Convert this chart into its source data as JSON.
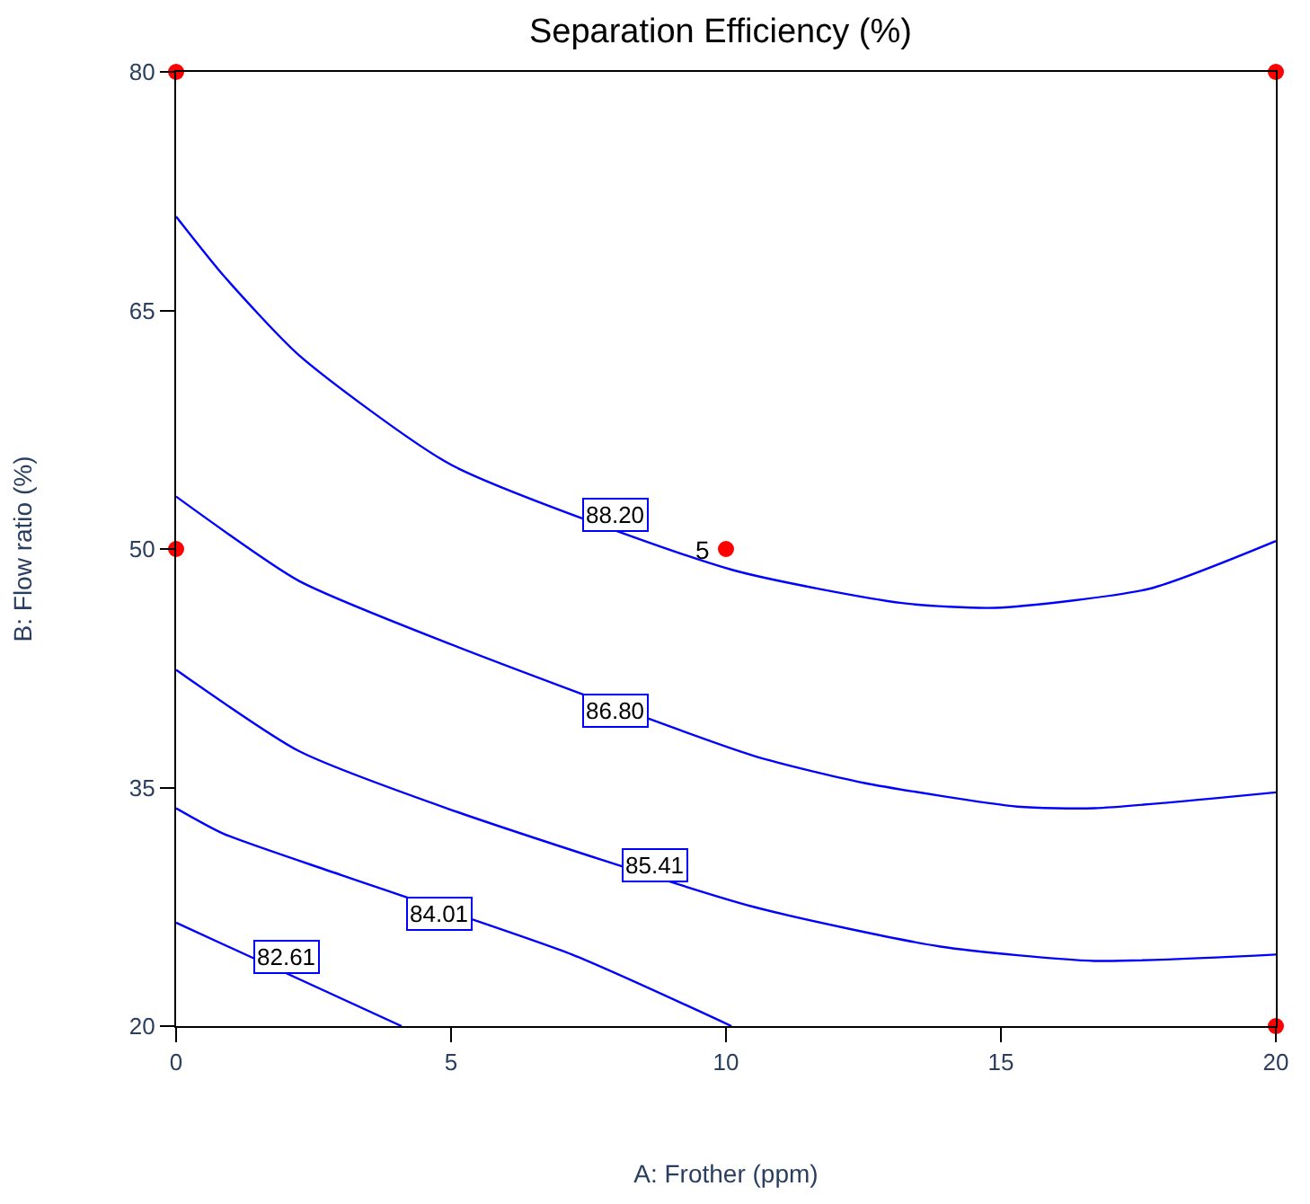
{
  "chart_data": {
    "type": "line",
    "title": "Separation Efficiency (%)",
    "xlabel": "A: Frother (ppm)",
    "ylabel": "B: Flow ratio (%)",
    "xlim": [
      0,
      20
    ],
    "xticks": [
      0,
      5,
      10,
      15,
      20
    ],
    "ylim": [
      20,
      80
    ],
    "yticks": [
      20,
      35,
      50,
      65,
      80
    ],
    "marker": "none",
    "line_style": "solid",
    "series": [
      {
        "color": "#0000ff",
        "x": [
          0,
          0.86,
          2.23,
          5,
          10.1,
          13.2,
          14.9,
          17.7,
          20
        ],
        "values": [
          70.9,
          67.2,
          62.2,
          55.3,
          48.7,
          46.6,
          46.3,
          47.5,
          50.5
        ]
      },
      {
        "color": "#0000ff",
        "x": [
          0,
          2.23,
          5,
          10.5,
          12.5,
          15.3,
          16.7,
          20
        ],
        "values": [
          53.3,
          48.0,
          44.0,
          37.0,
          35.3,
          33.8,
          33.7,
          34.7
        ]
      },
      {
        "color": "#0000ff",
        "x": [
          0,
          2.23,
          5,
          10.5,
          13.9,
          16.7,
          20
        ],
        "values": [
          42.4,
          37.3,
          33.6,
          27.5,
          25.0,
          24.1,
          24.5
        ]
      },
      {
        "color": "#0000ff",
        "x": [
          0,
          0.86,
          3.0,
          7.2,
          10.1
        ],
        "values": [
          33.7,
          32.1,
          29.5,
          24.5,
          20
        ]
      },
      {
        "color": "#0000ff",
        "x": [
          0,
          4.1
        ],
        "values": [
          26.5,
          20
        ]
      },
      {
        "type": "scatter",
        "marker": "circle",
        "color": "#ff0000",
        "x": [
          0,
          20,
          0,
          10,
          20
        ],
        "values": [
          80,
          80,
          50,
          50,
          20
        ]
      }
    ],
    "annotations": [
      {
        "text": "88.20",
        "x": 8.0,
        "y": 52.1
      },
      {
        "text": "86.80",
        "x": 8.0,
        "y": 39.8
      },
      {
        "text": "85.41",
        "x": 8.7,
        "y": 30.1
      },
      {
        "text": "84.01",
        "x": 4.8,
        "y": 27.1
      },
      {
        "text": "82.61",
        "x": 2.0,
        "y": 24.3
      },
      {
        "text": "5",
        "x": 10,
        "y": 50
      }
    ]
  }
}
